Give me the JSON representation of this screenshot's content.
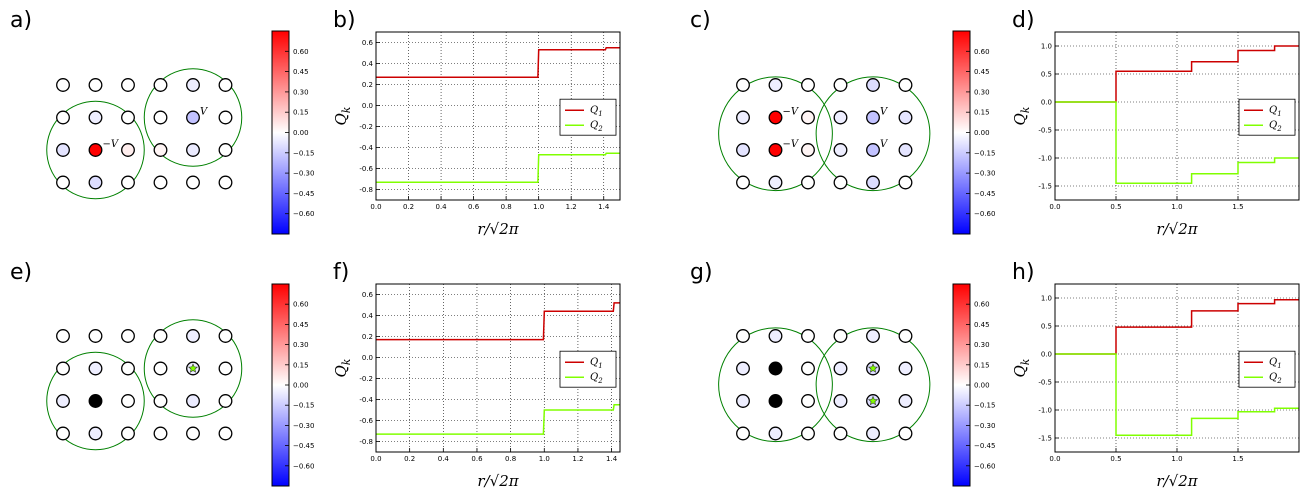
{
  "colormap": {
    "neg": "#0000ff",
    "mid": "#ffffff",
    "pos": "#ff0000",
    "vmin": -0.75,
    "vmax": 0.75,
    "ticks": [
      "0.60",
      "0.45",
      "0.30",
      "0.15",
      "0.00",
      "−0.15",
      "−0.30",
      "−0.45",
      "−0.60"
    ]
  },
  "colors": {
    "Q1": "#cc0000",
    "Q2": "#80ff00",
    "circle": "#008000"
  },
  "lattice_panels": [
    {
      "label": "a)",
      "rows": 4,
      "cols": 6,
      "values": [
        [
          0,
          0,
          0,
          0,
          -0.05,
          0
        ],
        [
          0,
          -0.05,
          0,
          0,
          -0.18,
          0
        ],
        [
          -0.08,
          0.75,
          0.05,
          0.03,
          -0.06,
          0
        ],
        [
          0,
          -0.1,
          0,
          0,
          0,
          0
        ]
      ],
      "annotations": [
        {
          "row": 2,
          "col": 1,
          "text": "−V"
        },
        {
          "row": 1,
          "col": 4,
          "text": "V"
        }
      ],
      "circles": [
        {
          "row": 2,
          "col": 1,
          "rx": 1.5
        },
        {
          "row": 1,
          "col": 4,
          "rx": 1.5
        }
      ]
    },
    {
      "label": "c)",
      "rows": 4,
      "cols": 6,
      "values": [
        [
          0,
          -0.05,
          0,
          0,
          -0.1,
          0
        ],
        [
          -0.05,
          0.75,
          0.03,
          -0.05,
          -0.18,
          -0.08
        ],
        [
          -0.08,
          0.75,
          0.03,
          -0.05,
          -0.18,
          -0.08
        ],
        [
          0,
          -0.05,
          0,
          0,
          -0.1,
          0
        ]
      ],
      "annotations": [
        {
          "row": 1,
          "col": 1,
          "text": "−V"
        },
        {
          "row": 2,
          "col": 1,
          "text": "−V"
        },
        {
          "row": 1,
          "col": 4,
          "text": "V"
        },
        {
          "row": 2,
          "col": 4,
          "text": "V"
        }
      ],
      "circles": [
        {
          "row": 1.5,
          "col": 1,
          "rx": 1.75
        },
        {
          "row": 1.5,
          "col": 4,
          "rx": 1.75
        }
      ]
    },
    {
      "label": "e)",
      "rows": 4,
      "cols": 6,
      "values": [
        [
          0,
          0,
          0,
          0,
          -0.05,
          0
        ],
        [
          0,
          -0.05,
          0,
          0,
          -0.05,
          0
        ],
        [
          -0.05,
          "black",
          0,
          0,
          -0.06,
          0
        ],
        [
          0,
          -0.05,
          0,
          0,
          0,
          0
        ]
      ],
      "stars": [
        {
          "row": 1,
          "col": 4
        }
      ],
      "circles": [
        {
          "row": 2,
          "col": 1,
          "rx": 1.5
        },
        {
          "row": 1,
          "col": 4,
          "rx": 1.5
        }
      ]
    },
    {
      "label": "g)",
      "rows": 4,
      "cols": 6,
      "values": [
        [
          0,
          -0.05,
          0,
          0,
          -0.05,
          0
        ],
        [
          -0.05,
          "black",
          0,
          -0.05,
          -0.1,
          -0.05
        ],
        [
          -0.05,
          "black",
          0,
          -0.05,
          -0.1,
          -0.05
        ],
        [
          0,
          -0.05,
          0,
          0,
          -0.05,
          0
        ]
      ],
      "stars": [
        {
          "row": 1,
          "col": 4
        },
        {
          "row": 2,
          "col": 4
        }
      ],
      "circles": [
        {
          "row": 1.5,
          "col": 1,
          "rx": 1.75
        },
        {
          "row": 1.5,
          "col": 4,
          "rx": 1.75
        }
      ]
    }
  ],
  "chart_data": [
    {
      "label": "b)",
      "type": "line",
      "xlabel": "r/√2π",
      "ylabel": "Q_k",
      "xlim": [
        0,
        1.5
      ],
      "ylim": [
        -0.9,
        0.7
      ],
      "xticks": [
        0.0,
        0.2,
        0.4,
        0.6,
        0.8,
        1.0,
        1.2,
        1.4
      ],
      "yticks": [
        -0.8,
        -0.6,
        -0.4,
        -0.2,
        0.0,
        0.2,
        0.4,
        0.6
      ],
      "legend": "center-right",
      "series": [
        {
          "name": "Q_1",
          "x": [
            0,
            0.995,
            1.0,
            1.41,
            1.415,
            1.5
          ],
          "y": [
            0.27,
            0.27,
            0.53,
            0.53,
            0.55,
            0.55
          ]
        },
        {
          "name": "Q_2",
          "x": [
            0,
            0.995,
            1.0,
            1.41,
            1.415,
            1.5
          ],
          "y": [
            -0.73,
            -0.73,
            -0.47,
            -0.47,
            -0.455,
            -0.455
          ]
        }
      ]
    },
    {
      "label": "d)",
      "type": "line",
      "xlabel": "r/√2π",
      "ylabel": "Q_k",
      "xlim": [
        0,
        2.0
      ],
      "ylim": [
        -1.75,
        1.25
      ],
      "xticks": [
        0.0,
        0.5,
        1.0,
        1.5
      ],
      "yticks": [
        -1.5,
        -1.0,
        -0.5,
        0.0,
        0.5,
        1.0
      ],
      "legend": "center-right",
      "series": [
        {
          "name": "Q_1",
          "x": [
            0,
            0.5,
            0.5,
            1.12,
            1.12,
            1.5,
            1.5,
            1.8,
            1.8,
            2.0
          ],
          "y": [
            0,
            0,
            0.55,
            0.55,
            0.72,
            0.72,
            0.92,
            0.92,
            1.0,
            1.0
          ]
        },
        {
          "name": "Q_2",
          "x": [
            0,
            0.5,
            0.5,
            1.12,
            1.12,
            1.5,
            1.5,
            1.8,
            1.8,
            2.0
          ],
          "y": [
            0,
            0,
            -1.45,
            -1.45,
            -1.28,
            -1.28,
            -1.08,
            -1.08,
            -1.0,
            -1.0
          ]
        }
      ]
    },
    {
      "label": "f)",
      "type": "line",
      "xlabel": "r/√2π",
      "ylabel": "Q_k",
      "xlim": [
        0,
        1.45
      ],
      "ylim": [
        -0.9,
        0.7
      ],
      "xticks": [
        0.0,
        0.2,
        0.4,
        0.6,
        0.8,
        1.0,
        1.2,
        1.4
      ],
      "yticks": [
        -0.8,
        -0.6,
        -0.4,
        -0.2,
        0.0,
        0.2,
        0.4,
        0.6
      ],
      "legend": "center-right",
      "series": [
        {
          "name": "Q_1",
          "x": [
            0,
            0.995,
            1.0,
            1.41,
            1.415,
            1.45
          ],
          "y": [
            0.17,
            0.17,
            0.44,
            0.44,
            0.52,
            0.52
          ]
        },
        {
          "name": "Q_2",
          "x": [
            0,
            0.995,
            1.0,
            1.41,
            1.415,
            1.45
          ],
          "y": [
            -0.73,
            -0.73,
            -0.5,
            -0.5,
            -0.45,
            -0.45
          ]
        }
      ]
    },
    {
      "label": "h)",
      "type": "line",
      "xlabel": "r/√2π",
      "ylabel": "Q_k",
      "xlim": [
        0,
        2.0
      ],
      "ylim": [
        -1.75,
        1.25
      ],
      "xticks": [
        0.0,
        0.5,
        1.0,
        1.5
      ],
      "yticks": [
        -1.5,
        -1.0,
        -0.5,
        0.0,
        0.5,
        1.0
      ],
      "legend": "center-right",
      "series": [
        {
          "name": "Q_1",
          "x": [
            0,
            0.5,
            0.5,
            1.12,
            1.12,
            1.5,
            1.5,
            1.8,
            1.8,
            2.0
          ],
          "y": [
            0,
            0,
            0.48,
            0.48,
            0.77,
            0.77,
            0.9,
            0.9,
            0.97,
            0.97
          ]
        },
        {
          "name": "Q_2",
          "x": [
            0,
            0.5,
            0.5,
            1.12,
            1.12,
            1.5,
            1.5,
            1.8,
            1.8,
            2.0
          ],
          "y": [
            0,
            0,
            -1.45,
            -1.45,
            -1.15,
            -1.15,
            -1.03,
            -1.03,
            -0.97,
            -0.97
          ]
        }
      ]
    }
  ]
}
